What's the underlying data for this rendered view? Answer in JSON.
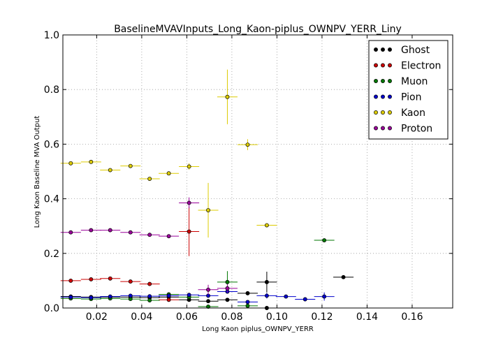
{
  "chart_data": {
    "type": "scatter",
    "title": "BaselineMVAVInputs_Long_Kaon-piplus_OWNPV_YERR_Liny",
    "xlabel": "Long Kaon piplus_OWNPV_YERR",
    "ylabel": "Long Kaon Baseline MVA Output",
    "xlim": [
      0.005,
      0.178
    ],
    "ylim": [
      0.0,
      1.0
    ],
    "x_ticks": [
      "0.02",
      "0.04",
      "0.06",
      "0.08",
      "0.10",
      "0.12",
      "0.14",
      "0.16"
    ],
    "y_ticks": [
      "0.0",
      "0.2",
      "0.4",
      "0.6",
      "0.8",
      "1.0"
    ],
    "grid": true,
    "legend_position": "top-right",
    "series": [
      {
        "name": "Ghost",
        "color": "#000000",
        "points": [
          {
            "x": 0.0085,
            "y": 0.042,
            "xerr": 0.0045,
            "yerr": 0.003
          },
          {
            "x": 0.0175,
            "y": 0.04,
            "xerr": 0.0045,
            "yerr": 0.003
          },
          {
            "x": 0.026,
            "y": 0.04,
            "xerr": 0.0045,
            "yerr": 0.003
          },
          {
            "x": 0.035,
            "y": 0.04,
            "xerr": 0.0045,
            "yerr": 0.003
          },
          {
            "x": 0.0435,
            "y": 0.038,
            "xerr": 0.0045,
            "yerr": 0.003
          },
          {
            "x": 0.052,
            "y": 0.04,
            "xerr": 0.0045,
            "yerr": 0.003
          },
          {
            "x": 0.061,
            "y": 0.03,
            "xerr": 0.0045,
            "yerr": 0.004
          },
          {
            "x": 0.0695,
            "y": 0.025,
            "xerr": 0.0045,
            "yerr": 0.005
          },
          {
            "x": 0.078,
            "y": 0.03,
            "xerr": 0.0045,
            "yerr": 0.005
          },
          {
            "x": 0.087,
            "y": 0.054,
            "xerr": 0.0045,
            "yerr": 0.006
          },
          {
            "x": 0.0955,
            "y": 0.095,
            "xerr": 0.0045,
            "yerr": 0.038
          },
          {
            "x": 0.0955,
            "y": 0.0,
            "xerr": 0.0,
            "yerr": 0.0
          },
          {
            "x": 0.1295,
            "y": 0.113,
            "xerr": 0.0045,
            "yerr": 0.003
          }
        ]
      },
      {
        "name": "Electron",
        "color": "#cc0000",
        "points": [
          {
            "x": 0.0085,
            "y": 0.1,
            "xerr": 0.0045,
            "yerr": 0.004
          },
          {
            "x": 0.0175,
            "y": 0.105,
            "xerr": 0.0045,
            "yerr": 0.004
          },
          {
            "x": 0.026,
            "y": 0.108,
            "xerr": 0.0045,
            "yerr": 0.004
          },
          {
            "x": 0.035,
            "y": 0.097,
            "xerr": 0.0045,
            "yerr": 0.004
          },
          {
            "x": 0.0435,
            "y": 0.088,
            "xerr": 0.0045,
            "yerr": 0.005
          },
          {
            "x": 0.052,
            "y": 0.03,
            "xerr": 0.0045,
            "yerr": 0.004
          },
          {
            "x": 0.061,
            "y": 0.28,
            "xerr": 0.0045,
            "yerr": 0.09
          }
        ]
      },
      {
        "name": "Muon",
        "color": "#007700",
        "points": [
          {
            "x": 0.0085,
            "y": 0.035,
            "xerr": 0.0045,
            "yerr": 0.003
          },
          {
            "x": 0.0175,
            "y": 0.033,
            "xerr": 0.0045,
            "yerr": 0.003
          },
          {
            "x": 0.026,
            "y": 0.035,
            "xerr": 0.0045,
            "yerr": 0.003
          },
          {
            "x": 0.035,
            "y": 0.033,
            "xerr": 0.0045,
            "yerr": 0.003
          },
          {
            "x": 0.0435,
            "y": 0.028,
            "xerr": 0.0045,
            "yerr": 0.003
          },
          {
            "x": 0.052,
            "y": 0.05,
            "xerr": 0.0045,
            "yerr": 0.004
          },
          {
            "x": 0.061,
            "y": 0.04,
            "xerr": 0.0045,
            "yerr": 0.005
          },
          {
            "x": 0.0695,
            "y": 0.005,
            "xerr": 0.0045,
            "yerr": 0.006
          },
          {
            "x": 0.078,
            "y": 0.095,
            "xerr": 0.0045,
            "yerr": 0.04
          },
          {
            "x": 0.087,
            "y": 0.008,
            "xerr": 0.0045,
            "yerr": 0.006
          },
          {
            "x": 0.121,
            "y": 0.248,
            "xerr": 0.0045,
            "yerr": 0.004
          }
        ]
      },
      {
        "name": "Pion",
        "color": "#0000cc",
        "points": [
          {
            "x": 0.0085,
            "y": 0.04,
            "xerr": 0.0045,
            "yerr": 0.003
          },
          {
            "x": 0.0175,
            "y": 0.038,
            "xerr": 0.0045,
            "yerr": 0.003
          },
          {
            "x": 0.026,
            "y": 0.042,
            "xerr": 0.0045,
            "yerr": 0.003
          },
          {
            "x": 0.035,
            "y": 0.045,
            "xerr": 0.0045,
            "yerr": 0.003
          },
          {
            "x": 0.0435,
            "y": 0.043,
            "xerr": 0.0045,
            "yerr": 0.003
          },
          {
            "x": 0.052,
            "y": 0.045,
            "xerr": 0.0045,
            "yerr": 0.003
          },
          {
            "x": 0.061,
            "y": 0.048,
            "xerr": 0.0045,
            "yerr": 0.004
          },
          {
            "x": 0.0695,
            "y": 0.045,
            "xerr": 0.0045,
            "yerr": 0.004
          },
          {
            "x": 0.078,
            "y": 0.06,
            "xerr": 0.0045,
            "yerr": 0.006
          },
          {
            "x": 0.087,
            "y": 0.022,
            "xerr": 0.0045,
            "yerr": 0.006
          },
          {
            "x": 0.0955,
            "y": 0.045,
            "xerr": 0.0045,
            "yerr": 0.01
          },
          {
            "x": 0.104,
            "y": 0.042,
            "xerr": 0.0045,
            "yerr": 0.004
          },
          {
            "x": 0.1125,
            "y": 0.032,
            "xerr": 0.0045,
            "yerr": 0.004
          },
          {
            "x": 0.121,
            "y": 0.042,
            "xerr": 0.0045,
            "yerr": 0.015
          }
        ]
      },
      {
        "name": "Kaon",
        "color": "#ddcc00",
        "points": [
          {
            "x": 0.0085,
            "y": 0.53,
            "xerr": 0.0045,
            "yerr": 0.004
          },
          {
            "x": 0.0175,
            "y": 0.535,
            "xerr": 0.0045,
            "yerr": 0.004
          },
          {
            "x": 0.026,
            "y": 0.505,
            "xerr": 0.0045,
            "yerr": 0.004
          },
          {
            "x": 0.035,
            "y": 0.52,
            "xerr": 0.0045,
            "yerr": 0.004
          },
          {
            "x": 0.0435,
            "y": 0.473,
            "xerr": 0.0045,
            "yerr": 0.005
          },
          {
            "x": 0.052,
            "y": 0.493,
            "xerr": 0.0045,
            "yerr": 0.006
          },
          {
            "x": 0.061,
            "y": 0.518,
            "xerr": 0.0045,
            "yerr": 0.012
          },
          {
            "x": 0.0695,
            "y": 0.358,
            "xerr": 0.0045,
            "yerr": 0.1
          },
          {
            "x": 0.078,
            "y": 0.773,
            "xerr": 0.0045,
            "yerr": 0.1
          },
          {
            "x": 0.087,
            "y": 0.598,
            "xerr": 0.0045,
            "yerr": 0.02
          },
          {
            "x": 0.0955,
            "y": 0.303,
            "xerr": 0.0045,
            "yerr": 0.004
          }
        ]
      },
      {
        "name": "Proton",
        "color": "#990099",
        "points": [
          {
            "x": 0.0085,
            "y": 0.277,
            "xerr": 0.0045,
            "yerr": 0.004
          },
          {
            "x": 0.0175,
            "y": 0.285,
            "xerr": 0.0045,
            "yerr": 0.004
          },
          {
            "x": 0.026,
            "y": 0.285,
            "xerr": 0.0045,
            "yerr": 0.004
          },
          {
            "x": 0.035,
            "y": 0.277,
            "xerr": 0.0045,
            "yerr": 0.004
          },
          {
            "x": 0.0435,
            "y": 0.268,
            "xerr": 0.0045,
            "yerr": 0.004
          },
          {
            "x": 0.052,
            "y": 0.263,
            "xerr": 0.0045,
            "yerr": 0.005
          },
          {
            "x": 0.061,
            "y": 0.385,
            "xerr": 0.0045,
            "yerr": 0.02
          },
          {
            "x": 0.0695,
            "y": 0.067,
            "xerr": 0.0045,
            "yerr": 0.018
          },
          {
            "x": 0.078,
            "y": 0.072,
            "xerr": 0.0045,
            "yerr": 0.015
          }
        ]
      }
    ]
  }
}
